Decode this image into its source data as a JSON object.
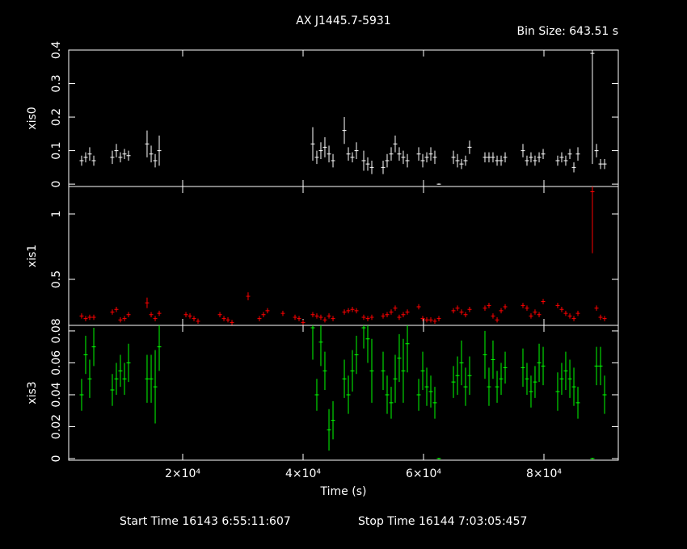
{
  "chart_data": {
    "type": "errorbar",
    "title": "AX J1445.7-5931",
    "subtitle": "Bin Size: 643.51 s",
    "xlabel": "Time (s)",
    "footer": [
      "Start Time 16143  6:55:11:607",
      "Stop Time 16144  7:03:05:457"
    ],
    "xlim": [
      1074,
      92349
    ],
    "xticks": [
      {
        "value": 20000,
        "label": "2×10⁴"
      },
      {
        "value": 40000,
        "label": "4×10⁴"
      },
      {
        "value": 60000,
        "label": "6×10⁴"
      },
      {
        "value": 80000,
        "label": "8×10⁴"
      }
    ],
    "x": [
      3220,
      3890,
      4560,
      5240,
      8320,
      8990,
      9660,
      10340,
      11010,
      14090,
      14770,
      15440,
      16110,
      20540,
      21210,
      21880,
      22550,
      26180,
      26850,
      27520,
      28190,
      30870,
      32750,
      33420,
      34090,
      36640,
      38660,
      39330,
      40000,
      41610,
      42280,
      42950,
      43620,
      44300,
      44970,
      46850,
      47520,
      48190,
      48860,
      50070,
      50740,
      51410,
      53290,
      53960,
      54630,
      55300,
      55970,
      56640,
      57320,
      59200,
      59870,
      60540,
      61210,
      61880,
      62550,
      64970,
      65640,
      66310,
      66980,
      67650,
      70200,
      70870,
      71540,
      72220,
      72890,
      73560,
      76510,
      77180,
      77850,
      78520,
      79200,
      79870,
      82280,
      82950,
      83620,
      84300,
      84970,
      85640,
      88050,
      88730,
      89400,
      90070
    ],
    "series": [
      {
        "name": "xis0",
        "color": "#ffffff",
        "ylim": [
          -0.007,
          0.4
        ],
        "yticks": [
          0,
          0.1,
          0.2,
          0.3,
          0.4
        ],
        "values": [
          0.07,
          0.08,
          0.09,
          0.07,
          0.08,
          0.1,
          0.08,
          0.09,
          0.085,
          0.12,
          0.09,
          0.07,
          0.1,
          null,
          null,
          null,
          null,
          null,
          null,
          null,
          null,
          null,
          null,
          null,
          null,
          null,
          null,
          null,
          null,
          0.12,
          0.08,
          0.1,
          0.11,
          0.09,
          0.07,
          0.16,
          0.09,
          0.08,
          0.1,
          0.07,
          0.06,
          0.05,
          0.05,
          0.07,
          0.09,
          0.12,
          0.09,
          0.08,
          0.07,
          0.09,
          0.07,
          0.08,
          0.09,
          0.08,
          0,
          0.08,
          0.07,
          0.06,
          0.07,
          0.11,
          0.08,
          0.08,
          0.08,
          0.07,
          0.07,
          0.08,
          0.1,
          0.07,
          0.08,
          0.07,
          0.08,
          0.09,
          0.07,
          0.08,
          0.07,
          0.09,
          0.05,
          0.09,
          0.39,
          0.1,
          0.06,
          0.06
        ],
        "errors": [
          0.015,
          0.015,
          0.02,
          0.015,
          0.02,
          0.02,
          0.015,
          0.015,
          0.015,
          0.04,
          0.025,
          0.02,
          0.045,
          null,
          null,
          null,
          null,
          null,
          null,
          null,
          null,
          null,
          null,
          null,
          null,
          null,
          null,
          null,
          null,
          0.05,
          0.02,
          0.025,
          0.03,
          0.025,
          0.02,
          0.04,
          0.02,
          0.015,
          0.025,
          0.03,
          0.02,
          0.02,
          0.02,
          0.02,
          0.02,
          0.025,
          0.02,
          0.02,
          0.02,
          0.02,
          0.02,
          0.015,
          0.02,
          0.02,
          0.002,
          0.02,
          0.02,
          0.015,
          0.015,
          0.02,
          0.015,
          0.015,
          0.015,
          0.015,
          0.015,
          0.015,
          0.02,
          0.015,
          0.015,
          0.015,
          0.015,
          0.015,
          0.015,
          0.015,
          0.015,
          0.015,
          0.015,
          0.02,
          0.33,
          0.02,
          0.015,
          0.015
        ]
      },
      {
        "name": "xis1",
        "color": "#ff0000",
        "ylim": [
          0.148,
          1.21
        ],
        "yticks": [
          0.5,
          1
        ],
        "values": [
          0.22,
          0.2,
          0.21,
          0.21,
          0.25,
          0.27,
          0.19,
          0.2,
          0.23,
          0.32,
          0.23,
          0.2,
          0.24,
          0.23,
          0.22,
          0.2,
          0.18,
          0.23,
          0.2,
          0.19,
          0.17,
          0.37,
          0.2,
          0.23,
          0.26,
          0.24,
          0.21,
          0.2,
          0.17,
          0.23,
          0.22,
          0.21,
          0.19,
          0.22,
          0.2,
          0.25,
          0.26,
          0.27,
          0.26,
          0.21,
          0.2,
          0.21,
          0.22,
          0.23,
          0.25,
          0.28,
          0.21,
          0.23,
          0.25,
          0.29,
          0.2,
          0.19,
          0.19,
          0.18,
          0.2,
          0.26,
          0.28,
          0.25,
          0.23,
          0.27,
          0.28,
          0.3,
          0.22,
          0.19,
          0.26,
          0.29,
          0.3,
          0.28,
          0.22,
          0.25,
          0.23,
          0.33,
          0.3,
          0.27,
          0.24,
          0.22,
          0.2,
          0.24,
          1.17,
          0.28,
          0.21,
          0.2
        ],
        "errors": [
          0.02,
          0.02,
          0.02,
          0.02,
          0.02,
          0.02,
          0.02,
          0.02,
          0.02,
          0.04,
          0.02,
          0.02,
          0.02,
          0.02,
          0.02,
          0.02,
          0.02,
          0.02,
          0.02,
          0.02,
          0.02,
          0.03,
          0.02,
          0.02,
          0.02,
          0.02,
          0.02,
          0.02,
          0.02,
          0.02,
          0.02,
          0.02,
          0.02,
          0.02,
          0.02,
          0.02,
          0.02,
          0.02,
          0.02,
          0.02,
          0.02,
          0.02,
          0.02,
          0.02,
          0.02,
          0.02,
          0.02,
          0.02,
          0.02,
          0.02,
          0.02,
          0.02,
          0.02,
          0.02,
          0.02,
          0.02,
          0.02,
          0.02,
          0.02,
          0.02,
          0.02,
          0.02,
          0.02,
          0.02,
          0.02,
          0.02,
          0.02,
          0.02,
          0.02,
          0.02,
          0.02,
          0.02,
          0.02,
          0.02,
          0.02,
          0.02,
          0.02,
          0.02,
          0.47,
          0.02,
          0.02,
          0.02
        ]
      },
      {
        "name": "xis3",
        "color": "#00ff00",
        "ylim": [
          -0.001,
          0.0835
        ],
        "yticks": [
          0,
          0.02,
          0.04,
          0.06,
          0.08
        ],
        "values": [
          0.04,
          0.065,
          0.05,
          0.07,
          0.043,
          0.05,
          0.055,
          0.05,
          0.06,
          0.05,
          0.05,
          0.045,
          0.07,
          null,
          null,
          null,
          null,
          null,
          null,
          null,
          null,
          null,
          null,
          null,
          null,
          null,
          null,
          null,
          null,
          0.082,
          0.04,
          0.073,
          0.055,
          0.018,
          0.024,
          0.05,
          0.04,
          0.055,
          0.065,
          0.082,
          0.075,
          0.055,
          0.055,
          0.04,
          0.035,
          0.05,
          0.063,
          0.055,
          0.072,
          0.04,
          0.055,
          0.045,
          0.042,
          0.035,
          0,
          0.048,
          0.052,
          0.06,
          0.045,
          0.052,
          0.065,
          0.045,
          0.062,
          0.045,
          0.05,
          0.057,
          0.057,
          0.05,
          0.042,
          0.048,
          0.06,
          0.058,
          0.042,
          0.05,
          0.055,
          0.05,
          0.045,
          0.035,
          0,
          0.058,
          0.058,
          0.04
        ],
        "errors": [
          0.01,
          0.012,
          0.012,
          0.012,
          0.01,
          0.01,
          0.01,
          0.01,
          0.012,
          0.015,
          0.015,
          0.023,
          0.015,
          null,
          null,
          null,
          null,
          null,
          null,
          null,
          null,
          null,
          null,
          null,
          null,
          null,
          null,
          null,
          null,
          0.02,
          0.01,
          0.015,
          0.012,
          0.013,
          0.012,
          0.012,
          0.012,
          0.013,
          0.012,
          0.013,
          0.015,
          0.02,
          0.012,
          0.012,
          0.01,
          0.015,
          0.015,
          0.02,
          0.018,
          0.01,
          0.012,
          0.012,
          0.01,
          0.01,
          0.0005,
          0.01,
          0.012,
          0.014,
          0.012,
          0.012,
          0.015,
          0.012,
          0.012,
          0.01,
          0.01,
          0.01,
          0.012,
          0.01,
          0.01,
          0.01,
          0.012,
          0.012,
          0.012,
          0.01,
          0.012,
          0.012,
          0.012,
          0.01,
          0.0005,
          0.012,
          0.012,
          0.012
        ]
      }
    ]
  }
}
